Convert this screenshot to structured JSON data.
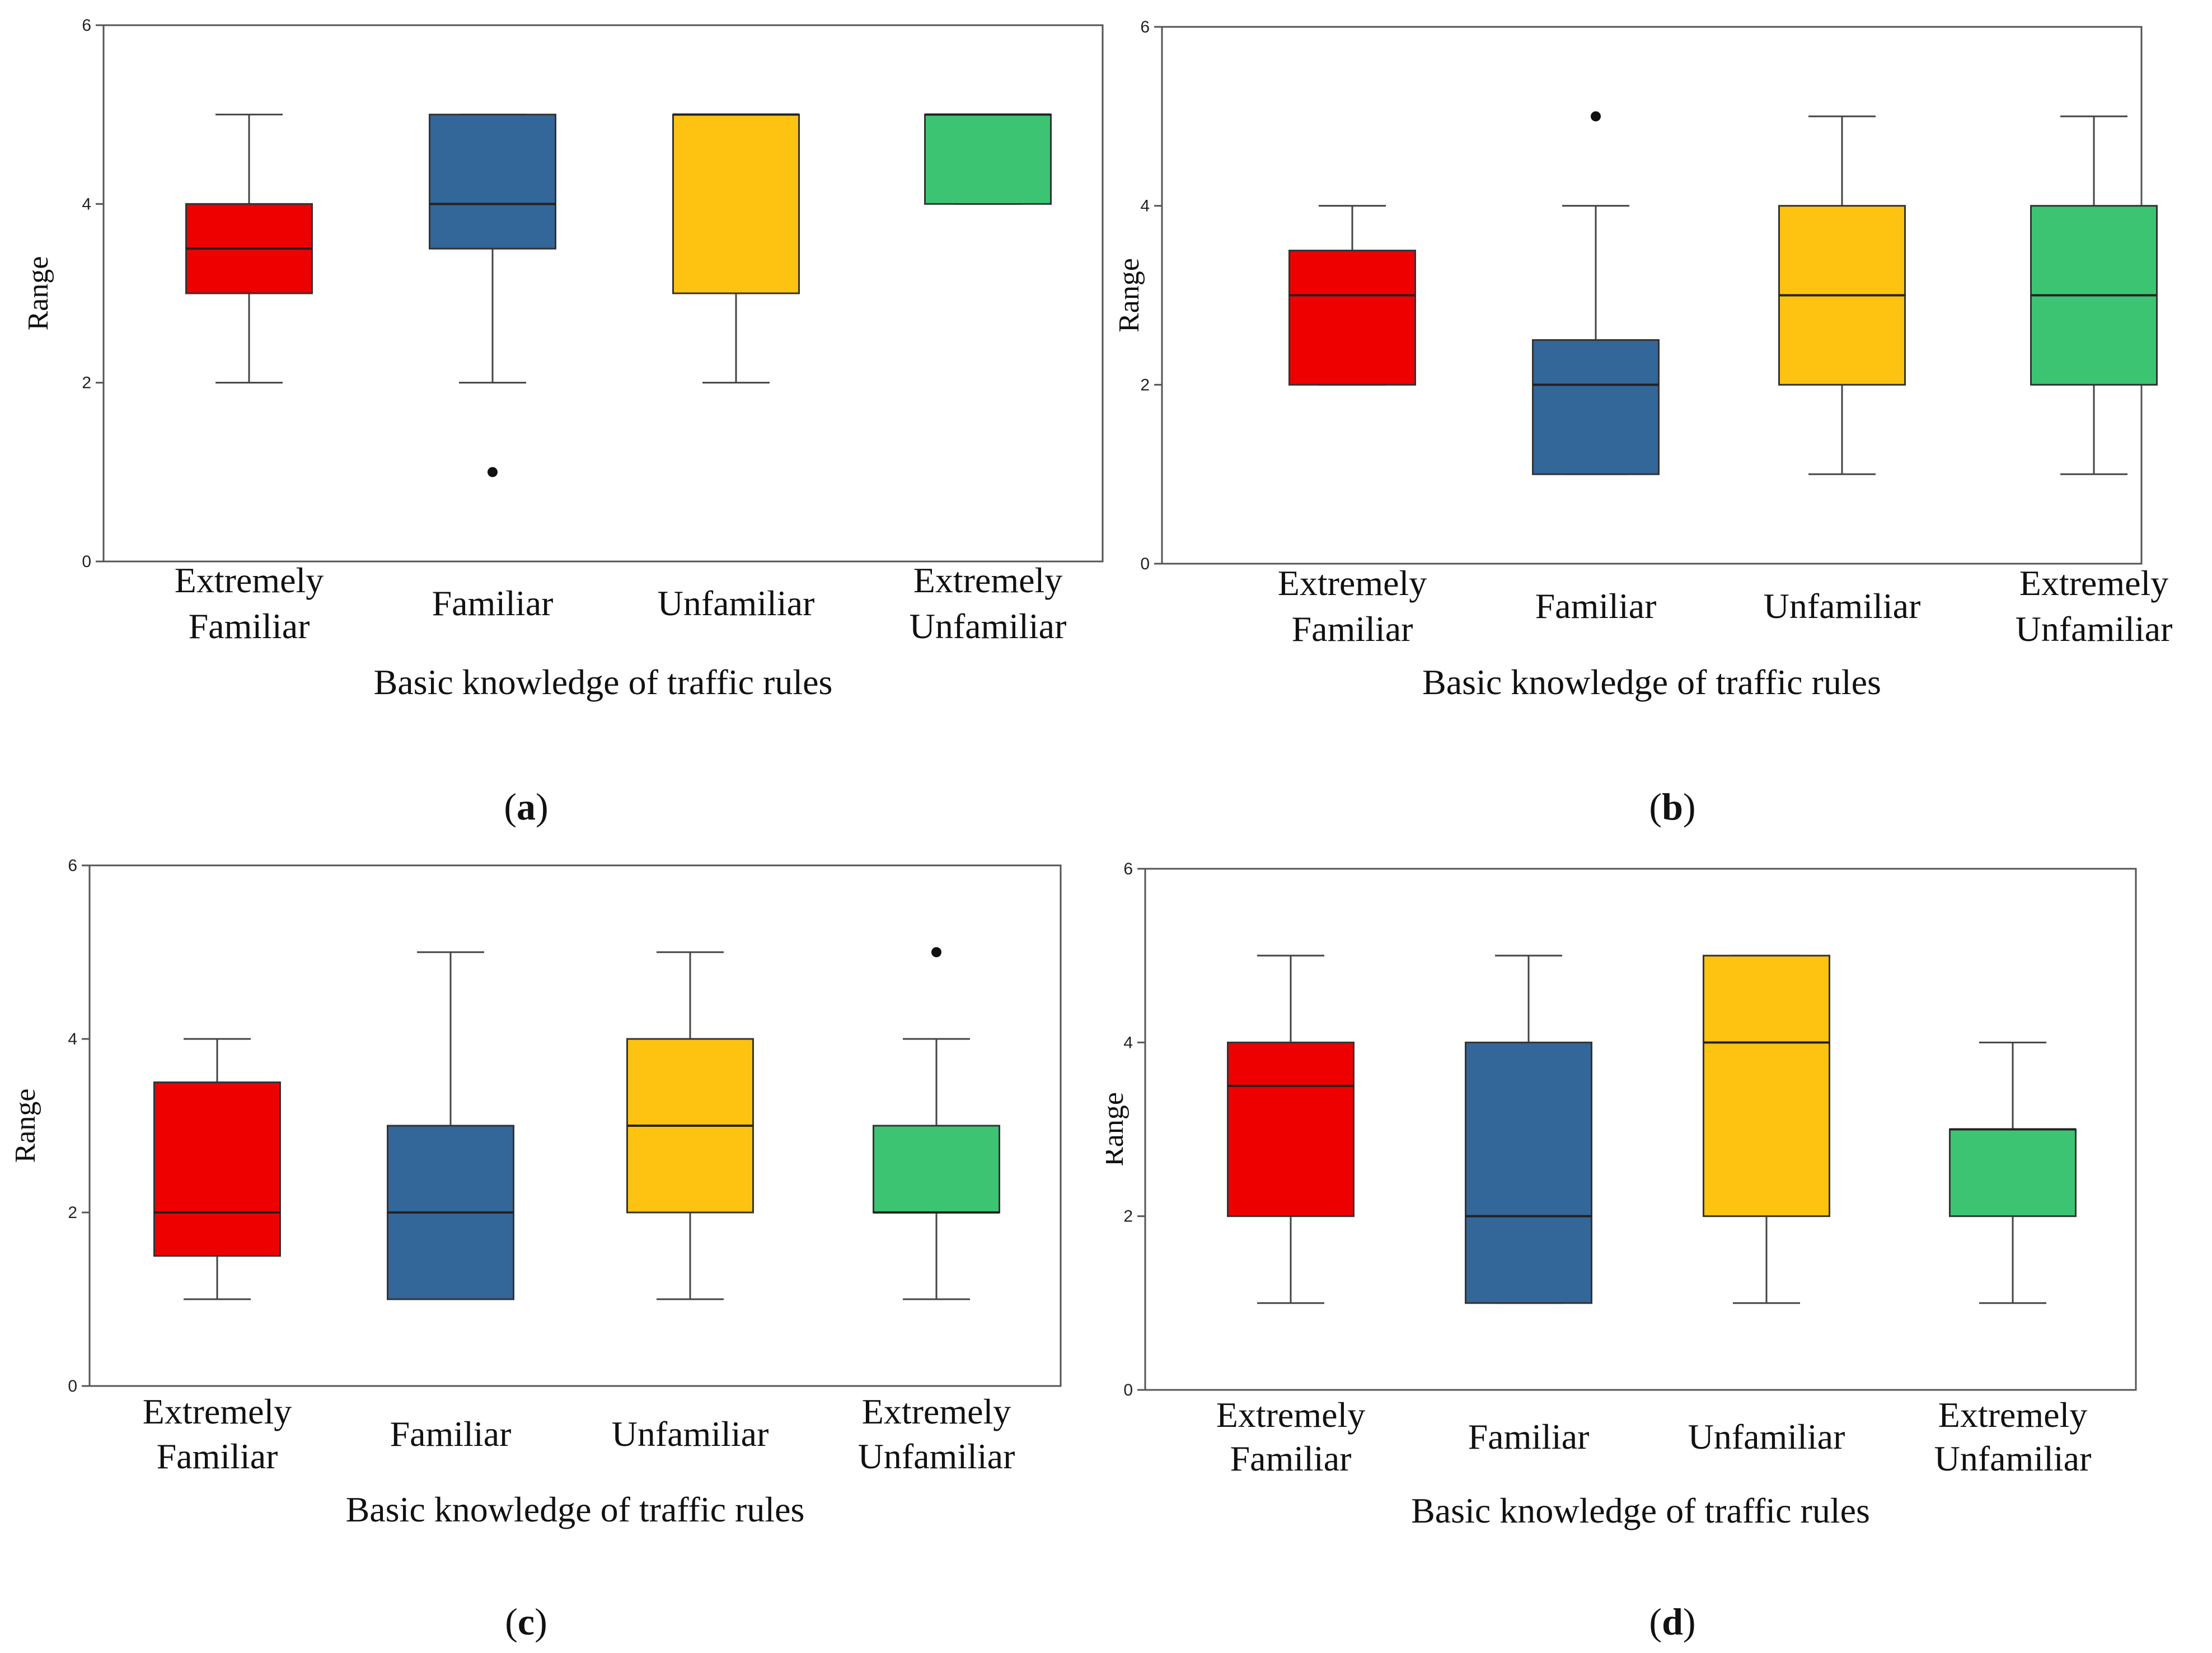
{
  "colors": {
    "red": "#ee0000",
    "blue": "#336699",
    "yellow": "#fec210",
    "green": "#3cc472"
  },
  "chart_data": [
    {
      "type": "box",
      "caption_letter": "a",
      "xlabel": "Basic knowledge of traffic rules",
      "ylabel": "Range",
      "ylim": [
        0,
        6
      ],
      "yticks": [
        0,
        2,
        4,
        6
      ],
      "categories": [
        {
          "lines": [
            "Extremely",
            "Familiar"
          ],
          "color": "#ee0000",
          "min": 2,
          "q1": 3,
          "median": 3.5,
          "q3": 4,
          "max": 5,
          "outliers": []
        },
        {
          "lines": [
            "Familiar"
          ],
          "color": "#336699",
          "min": 2,
          "q1": 3.5,
          "median": 4,
          "q3": 5,
          "max": 5,
          "outliers": [
            1
          ]
        },
        {
          "lines": [
            "Unfamiliar"
          ],
          "color": "#fec210",
          "min": 2,
          "q1": 3,
          "median": 5,
          "q3": 5,
          "max": 5,
          "outliers": []
        },
        {
          "lines": [
            "Extremely",
            "Unfamiliar"
          ],
          "color": "#3cc472",
          "min": 4,
          "q1": 4,
          "median": 5,
          "q3": 5,
          "max": 5,
          "outliers": []
        }
      ]
    },
    {
      "type": "box",
      "caption_letter": "b",
      "xlabel": "Basic knowledge of traffic rules",
      "ylabel": "Range",
      "ylim": [
        0,
        6
      ],
      "yticks": [
        0,
        2,
        4,
        6
      ],
      "categories": [
        {
          "lines": [
            "Extremely",
            "Familiar"
          ],
          "color": "#ee0000",
          "min": 2,
          "q1": 2,
          "median": 3,
          "q3": 3.5,
          "max": 4,
          "outliers": []
        },
        {
          "lines": [
            "Familiar"
          ],
          "color": "#336699",
          "min": 1,
          "q1": 1,
          "median": 2,
          "q3": 2.5,
          "max": 4,
          "outliers": [
            5
          ]
        },
        {
          "lines": [
            "Unfamiliar"
          ],
          "color": "#fec210",
          "min": 1,
          "q1": 2,
          "median": 3,
          "q3": 4,
          "max": 5,
          "outliers": []
        },
        {
          "lines": [
            "Extremely",
            "Unfamiliar"
          ],
          "color": "#3cc472",
          "min": 1,
          "q1": 2,
          "median": 3,
          "q3": 4,
          "max": 5,
          "outliers": []
        }
      ]
    },
    {
      "type": "box",
      "caption_letter": "c",
      "xlabel": "Basic knowledge of traffic rules",
      "ylabel": "Range",
      "ylim": [
        0,
        6
      ],
      "yticks": [
        0,
        2,
        4,
        6
      ],
      "categories": [
        {
          "lines": [
            "Extremely",
            "Familiar"
          ],
          "color": "#ee0000",
          "min": 1,
          "q1": 1.5,
          "median": 2,
          "q3": 3.5,
          "max": 4,
          "outliers": []
        },
        {
          "lines": [
            "Familiar"
          ],
          "color": "#336699",
          "min": 1,
          "q1": 1,
          "median": 2,
          "q3": 3,
          "max": 5,
          "outliers": []
        },
        {
          "lines": [
            "Unfamiliar"
          ],
          "color": "#fec210",
          "min": 1,
          "q1": 2,
          "median": 3,
          "q3": 4,
          "max": 5,
          "outliers": []
        },
        {
          "lines": [
            "Extremely",
            "Unfamiliar"
          ],
          "color": "#3cc472",
          "min": 1,
          "q1": 2,
          "median": 2,
          "q3": 3,
          "max": 4,
          "outliers": [
            5
          ]
        }
      ]
    },
    {
      "type": "box",
      "caption_letter": "d",
      "xlabel": "Basic knowledge of traffic rules",
      "ylabel": "Range",
      "ylim": [
        0,
        6
      ],
      "yticks": [
        0,
        2,
        4,
        6
      ],
      "categories": [
        {
          "lines": [
            "Extremely",
            "Familiar"
          ],
          "color": "#ee0000",
          "min": 1,
          "q1": 2,
          "median": 3.5,
          "q3": 4,
          "max": 5,
          "outliers": []
        },
        {
          "lines": [
            "Familiar"
          ],
          "color": "#336699",
          "min": 1,
          "q1": 1,
          "median": 2,
          "q3": 4,
          "max": 5,
          "outliers": []
        },
        {
          "lines": [
            "Unfamiliar"
          ],
          "color": "#fec210",
          "min": 1,
          "q1": 2,
          "median": 4,
          "q3": 5,
          "max": 5,
          "outliers": []
        },
        {
          "lines": [
            "Extremely",
            "Unfamiliar"
          ],
          "color": "#3cc472",
          "min": 1,
          "q1": 2,
          "median": 3,
          "q3": 3,
          "max": 4,
          "outliers": []
        }
      ]
    }
  ]
}
